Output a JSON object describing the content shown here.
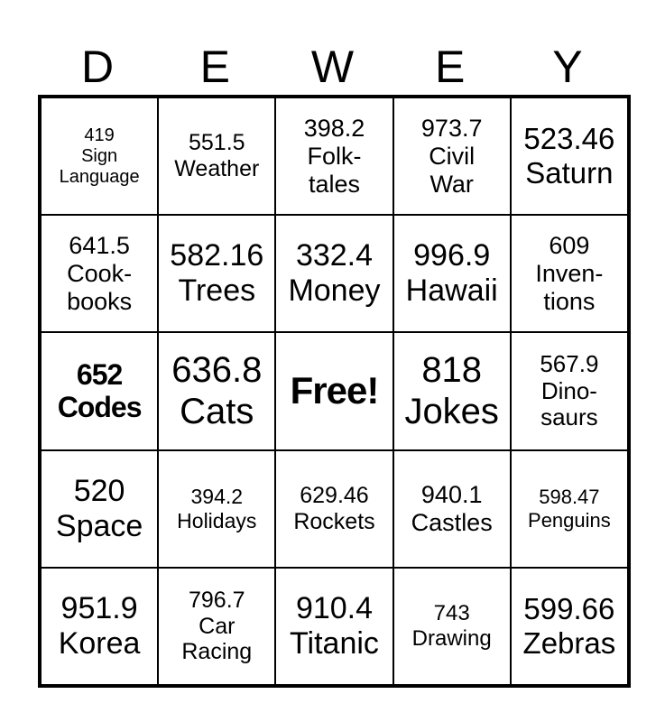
{
  "header": {
    "letters": [
      "D",
      "E",
      "W",
      "E",
      "Y"
    ]
  },
  "cells": [
    [
      "419",
      "Sign",
      "Language"
    ],
    [
      "551.5",
      "Weather"
    ],
    [
      "398.2",
      "Folk-",
      "tales"
    ],
    [
      "973.7",
      "Civil",
      "War"
    ],
    [
      "523.46",
      "Saturn"
    ],
    [
      "641.5",
      "Cook-",
      "books"
    ],
    [
      "582.16",
      "Trees"
    ],
    [
      "332.4",
      "Money"
    ],
    [
      "996.9",
      "Hawaii"
    ],
    [
      "609",
      "Inven-",
      "tions"
    ],
    [
      "652",
      "Codes"
    ],
    [
      "636.8",
      "Cats"
    ],
    [
      "Free!"
    ],
    [
      "818",
      "Jokes"
    ],
    [
      "567.9",
      "Dino-",
      "saurs"
    ],
    [
      "520",
      "Space"
    ],
    [
      "394.2",
      "Holidays"
    ],
    [
      "629.46",
      "Rockets"
    ],
    [
      "940.1",
      "Castles"
    ],
    [
      "598.47",
      "Penguins"
    ],
    [
      "951.9",
      "Korea"
    ],
    [
      "796.7",
      "Car",
      "Racing"
    ],
    [
      "910.4",
      "Titanic"
    ],
    [
      "743",
      "Drawing"
    ],
    [
      "599.66",
      "Zebras"
    ]
  ]
}
